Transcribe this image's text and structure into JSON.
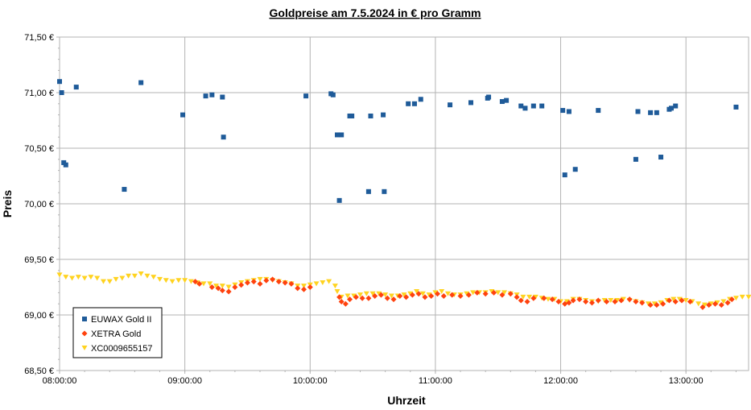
{
  "chart_data": {
    "type": "scatter",
    "title": "Goldpreise am 7.5.2024 in € pro Gramm",
    "xlabel": "Uhrzeit",
    "ylabel": "Preis",
    "xlim": [
      "08:00:00",
      "13:30:00"
    ],
    "ylim": [
      68.5,
      71.5
    ],
    "x_ticks": [
      "08:00:00",
      "09:00:00",
      "10:00:00",
      "11:00:00",
      "12:00:00",
      "13:00:00"
    ],
    "y_ticks": [
      "68,50 €",
      "69,00 €",
      "69,50 €",
      "70,00 €",
      "70,50 €",
      "71,00 €",
      "71,50 €"
    ],
    "y_tick_values": [
      68.5,
      69.0,
      69.5,
      70.0,
      70.5,
      71.0,
      71.5
    ],
    "grid": true,
    "legend_position": "bottom-left",
    "series": [
      {
        "name": "EUWAX Gold II",
        "color": "#1f5b99",
        "marker": "square",
        "points": [
          [
            "08:00:00",
            71.1
          ],
          [
            "08:01:00",
            71.0
          ],
          [
            "08:02:00",
            70.37
          ],
          [
            "08:03:00",
            70.35
          ],
          [
            "08:08:00",
            71.05
          ],
          [
            "08:31:00",
            70.13
          ],
          [
            "08:39:00",
            71.09
          ],
          [
            "08:59:00",
            70.8
          ],
          [
            "09:10:00",
            70.97
          ],
          [
            "09:13:00",
            70.98
          ],
          [
            "09:18:00",
            70.96
          ],
          [
            "09:18:30",
            70.6
          ],
          [
            "09:58:00",
            70.97
          ],
          [
            "10:10:00",
            70.99
          ],
          [
            "10:11:00",
            70.98
          ],
          [
            "10:13:00",
            70.62
          ],
          [
            "10:14:00",
            70.03
          ],
          [
            "10:15:00",
            70.62
          ],
          [
            "10:19:00",
            70.79
          ],
          [
            "10:20:00",
            70.79
          ],
          [
            "10:28:00",
            70.11
          ],
          [
            "10:29:00",
            70.79
          ],
          [
            "10:35:00",
            70.8
          ],
          [
            "10:35:30",
            70.11
          ],
          [
            "10:47:00",
            70.9
          ],
          [
            "10:50:00",
            70.9
          ],
          [
            "10:53:00",
            70.94
          ],
          [
            "11:07:00",
            70.89
          ],
          [
            "11:17:00",
            70.91
          ],
          [
            "11:25:00",
            70.95
          ],
          [
            "11:25:30",
            70.96
          ],
          [
            "11:32:00",
            70.92
          ],
          [
            "11:34:00",
            70.93
          ],
          [
            "11:41:00",
            70.88
          ],
          [
            "11:43:00",
            70.86
          ],
          [
            "11:47:00",
            70.88
          ],
          [
            "11:51:00",
            70.88
          ],
          [
            "12:01:00",
            70.84
          ],
          [
            "12:02:00",
            70.26
          ],
          [
            "12:04:00",
            70.83
          ],
          [
            "12:07:00",
            70.31
          ],
          [
            "12:18:00",
            70.84
          ],
          [
            "12:36:00",
            70.4
          ],
          [
            "12:37:00",
            70.83
          ],
          [
            "12:43:00",
            70.82
          ],
          [
            "12:46:00",
            70.82
          ],
          [
            "12:48:00",
            70.42
          ],
          [
            "12:52:00",
            70.85
          ],
          [
            "12:53:00",
            70.86
          ],
          [
            "12:55:00",
            70.88
          ],
          [
            "13:24:00",
            70.87
          ]
        ]
      },
      {
        "name": "XETRA Gold",
        "color": "#ff420e",
        "marker": "diamond",
        "points": [
          [
            "09:05:00",
            69.3
          ],
          [
            "09:07:00",
            69.28
          ],
          [
            "09:13:00",
            69.25
          ],
          [
            "09:16:00",
            69.24
          ],
          [
            "09:18:00",
            69.22
          ],
          [
            "09:21:00",
            69.21
          ],
          [
            "09:24:00",
            69.25
          ],
          [
            "09:27:00",
            69.27
          ],
          [
            "09:30:00",
            69.29
          ],
          [
            "09:33:00",
            69.3
          ],
          [
            "09:36:00",
            69.28
          ],
          [
            "09:39:00",
            69.31
          ],
          [
            "09:42:00",
            69.32
          ],
          [
            "09:45:00",
            69.3
          ],
          [
            "09:48:00",
            69.29
          ],
          [
            "09:51:00",
            69.28
          ],
          [
            "09:54:00",
            69.24
          ],
          [
            "09:57:00",
            69.23
          ],
          [
            "10:00:00",
            69.25
          ],
          [
            "10:14:00",
            69.16
          ],
          [
            "10:15:00",
            69.12
          ],
          [
            "10:17:00",
            69.1
          ],
          [
            "10:19:00",
            69.14
          ],
          [
            "10:22:00",
            69.16
          ],
          [
            "10:25:00",
            69.15
          ],
          [
            "10:28:00",
            69.15
          ],
          [
            "10:31:00",
            69.17
          ],
          [
            "10:34:00",
            69.18
          ],
          [
            "10:37:00",
            69.15
          ],
          [
            "10:40:00",
            69.14
          ],
          [
            "10:43:00",
            69.17
          ],
          [
            "10:46:00",
            69.16
          ],
          [
            "10:49:00",
            69.18
          ],
          [
            "10:52:00",
            69.19
          ],
          [
            "10:55:00",
            69.16
          ],
          [
            "10:58:00",
            69.17
          ],
          [
            "11:01:00",
            69.19
          ],
          [
            "11:04:00",
            69.17
          ],
          [
            "11:08:00",
            69.18
          ],
          [
            "11:12:00",
            69.17
          ],
          [
            "11:16:00",
            69.18
          ],
          [
            "11:20:00",
            69.2
          ],
          [
            "11:24:00",
            69.19
          ],
          [
            "11:28:00",
            69.2
          ],
          [
            "11:32:00",
            69.18
          ],
          [
            "11:36:00",
            69.19
          ],
          [
            "11:39:00",
            69.16
          ],
          [
            "11:41:00",
            69.13
          ],
          [
            "11:44:00",
            69.12
          ],
          [
            "11:47:00",
            69.15
          ],
          [
            "11:52:00",
            69.15
          ],
          [
            "11:56:00",
            69.14
          ],
          [
            "11:59:00",
            69.12
          ],
          [
            "12:02:00",
            69.1
          ],
          [
            "12:04:00",
            69.11
          ],
          [
            "12:06:00",
            69.13
          ],
          [
            "12:09:00",
            69.14
          ],
          [
            "12:12:00",
            69.12
          ],
          [
            "12:15:00",
            69.11
          ],
          [
            "12:18:00",
            69.13
          ],
          [
            "12:22:00",
            69.12
          ],
          [
            "12:26:00",
            69.12
          ],
          [
            "12:29:00",
            69.13
          ],
          [
            "12:33:00",
            69.14
          ],
          [
            "12:36:00",
            69.12
          ],
          [
            "12:39:00",
            69.11
          ],
          [
            "12:43:00",
            69.09
          ],
          [
            "12:46:00",
            69.09
          ],
          [
            "12:49:00",
            69.1
          ],
          [
            "12:52:00",
            69.13
          ],
          [
            "12:55:00",
            69.12
          ],
          [
            "12:58:00",
            69.13
          ],
          [
            "13:02:00",
            69.12
          ],
          [
            "13:08:00",
            69.07
          ],
          [
            "13:11:00",
            69.09
          ],
          [
            "13:14:00",
            69.1
          ],
          [
            "13:17:00",
            69.09
          ],
          [
            "13:20:00",
            69.11
          ],
          [
            "13:22:00",
            69.14
          ]
        ]
      },
      {
        "name": "XC0009655157",
        "color": "#ffd320",
        "marker": "triangle-down",
        "points": [
          [
            "08:00:00",
            69.36
          ],
          [
            "08:03:00",
            69.34
          ],
          [
            "08:06:00",
            69.33
          ],
          [
            "08:09:00",
            69.34
          ],
          [
            "08:12:00",
            69.33
          ],
          [
            "08:15:00",
            69.34
          ],
          [
            "08:18:00",
            69.33
          ],
          [
            "08:21:00",
            69.3
          ],
          [
            "08:24:00",
            69.3
          ],
          [
            "08:27:00",
            69.32
          ],
          [
            "08:30:00",
            69.33
          ],
          [
            "08:33:00",
            69.35
          ],
          [
            "08:36:00",
            69.35
          ],
          [
            "08:39:00",
            69.37
          ],
          [
            "08:42:00",
            69.35
          ],
          [
            "08:45:00",
            69.34
          ],
          [
            "08:48:00",
            69.32
          ],
          [
            "08:51:00",
            69.31
          ],
          [
            "08:54:00",
            69.3
          ],
          [
            "08:57:00",
            69.31
          ],
          [
            "09:00:00",
            69.31
          ],
          [
            "09:03:00",
            69.3
          ],
          [
            "09:06:00",
            69.29
          ],
          [
            "09:09:00",
            69.28
          ],
          [
            "09:12:00",
            69.28
          ],
          [
            "09:15:00",
            69.26
          ],
          [
            "09:18:00",
            69.26
          ],
          [
            "09:21:00",
            69.25
          ],
          [
            "09:24:00",
            69.27
          ],
          [
            "09:27:00",
            69.29
          ],
          [
            "09:30:00",
            69.3
          ],
          [
            "09:33:00",
            69.31
          ],
          [
            "09:36:00",
            69.32
          ],
          [
            "09:39:00",
            69.32
          ],
          [
            "09:42:00",
            69.31
          ],
          [
            "09:45:00",
            69.3
          ],
          [
            "09:48:00",
            69.29
          ],
          [
            "09:51:00",
            69.28
          ],
          [
            "09:54:00",
            69.26
          ],
          [
            "09:57:00",
            69.26
          ],
          [
            "10:00:00",
            69.27
          ],
          [
            "10:03:00",
            69.28
          ],
          [
            "10:06:00",
            69.29
          ],
          [
            "10:09:00",
            69.3
          ],
          [
            "10:12:00",
            69.26
          ],
          [
            "10:13:00",
            69.21
          ],
          [
            "10:15:00",
            69.16
          ],
          [
            "10:18:00",
            69.17
          ],
          [
            "10:21:00",
            69.17
          ],
          [
            "10:24:00",
            69.18
          ],
          [
            "10:27:00",
            69.19
          ],
          [
            "10:30:00",
            69.19
          ],
          [
            "10:33:00",
            69.19
          ],
          [
            "10:36:00",
            69.18
          ],
          [
            "10:39:00",
            69.17
          ],
          [
            "10:42:00",
            69.17
          ],
          [
            "10:45:00",
            69.18
          ],
          [
            "10:48:00",
            69.19
          ],
          [
            "10:51:00",
            69.21
          ],
          [
            "10:54:00",
            69.19
          ],
          [
            "10:57:00",
            69.18
          ],
          [
            "11:00:00",
            69.2
          ],
          [
            "11:03:00",
            69.21
          ],
          [
            "11:06:00",
            69.19
          ],
          [
            "11:09:00",
            69.18
          ],
          [
            "11:12:00",
            69.18
          ],
          [
            "11:15:00",
            69.19
          ],
          [
            "11:18:00",
            69.2
          ],
          [
            "11:21:00",
            69.2
          ],
          [
            "11:24:00",
            69.2
          ],
          [
            "11:27:00",
            69.21
          ],
          [
            "11:30:00",
            69.2
          ],
          [
            "11:33:00",
            69.2
          ],
          [
            "11:36:00",
            69.19
          ],
          [
            "11:39:00",
            69.18
          ],
          [
            "11:42:00",
            69.16
          ],
          [
            "11:45:00",
            69.16
          ],
          [
            "11:48:00",
            69.16
          ],
          [
            "11:51:00",
            69.15
          ],
          [
            "11:54:00",
            69.14
          ],
          [
            "11:57:00",
            69.14
          ],
          [
            "12:00:00",
            69.12
          ],
          [
            "12:03:00",
            69.12
          ],
          [
            "12:06:00",
            69.14
          ],
          [
            "12:09:00",
            69.14
          ],
          [
            "12:12:00",
            69.13
          ],
          [
            "12:15:00",
            69.12
          ],
          [
            "12:18:00",
            69.12
          ],
          [
            "12:21:00",
            69.13
          ],
          [
            "12:24:00",
            69.13
          ],
          [
            "12:27:00",
            69.13
          ],
          [
            "12:30:00",
            69.14
          ],
          [
            "12:33:00",
            69.13
          ],
          [
            "12:36:00",
            69.12
          ],
          [
            "12:39:00",
            69.11
          ],
          [
            "12:42:00",
            69.1
          ],
          [
            "12:45:00",
            69.1
          ],
          [
            "12:48:00",
            69.11
          ],
          [
            "12:51:00",
            69.13
          ],
          [
            "12:54:00",
            69.14
          ],
          [
            "12:57:00",
            69.14
          ],
          [
            "13:00:00",
            69.13
          ],
          [
            "13:03:00",
            69.12
          ],
          [
            "13:06:00",
            69.1
          ],
          [
            "13:09:00",
            69.09
          ],
          [
            "13:12:00",
            69.1
          ],
          [
            "13:15:00",
            69.11
          ],
          [
            "13:18:00",
            69.12
          ],
          [
            "13:21:00",
            69.14
          ],
          [
            "13:24:00",
            69.15
          ],
          [
            "13:27:00",
            69.16
          ],
          [
            "13:30:00",
            69.16
          ]
        ]
      }
    ]
  }
}
